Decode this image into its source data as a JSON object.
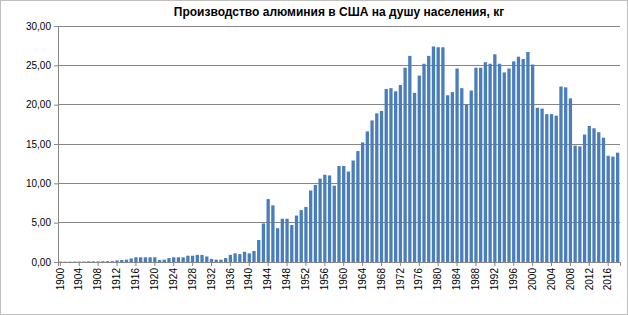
{
  "chart_data": {
    "type": "bar",
    "title": "Производство алюминия в США на душу населения, кг",
    "categories": [
      "1900",
      null,
      null,
      null,
      "1904",
      null,
      null,
      null,
      "1908",
      null,
      null,
      null,
      "1912",
      null,
      null,
      null,
      "1916",
      null,
      null,
      null,
      "1920",
      null,
      null,
      null,
      "1924",
      null,
      null,
      null,
      "1928",
      null,
      null,
      null,
      "1932",
      null,
      null,
      null,
      "1936",
      null,
      null,
      null,
      "1940",
      null,
      null,
      null,
      "1944",
      null,
      null,
      null,
      "1948",
      null,
      null,
      null,
      "1952",
      null,
      null,
      null,
      "1956",
      null,
      null,
      null,
      "1960",
      null,
      null,
      null,
      "1964",
      null,
      null,
      null,
      "1968",
      null,
      null,
      null,
      "1972",
      null,
      null,
      null,
      "1976",
      null,
      null,
      null,
      "1980",
      null,
      null,
      null,
      "1984",
      null,
      null,
      null,
      "1988",
      null,
      null,
      null,
      "1992",
      null,
      null,
      null,
      "1996",
      null,
      null,
      null,
      "2000",
      null,
      null,
      null,
      "2004",
      null,
      null,
      null,
      "2008",
      null,
      null,
      null,
      "2012",
      null,
      null,
      null,
      "2016",
      null,
      null
    ],
    "values": [
      0.05,
      0.04,
      0.04,
      0.05,
      0.05,
      0.06,
      0.08,
      0.08,
      0.07,
      0.1,
      0.1,
      0.1,
      0.2,
      0.25,
      0.3,
      0.45,
      0.6,
      0.6,
      0.6,
      0.6,
      0.6,
      0.25,
      0.3,
      0.5,
      0.6,
      0.6,
      0.6,
      0.8,
      0.8,
      0.9,
      0.9,
      0.7,
      0.4,
      0.3,
      0.3,
      0.5,
      0.9,
      1.1,
      1.0,
      1.3,
      1.1,
      1.4,
      2.8,
      4.9,
      8.0,
      7.2,
      4.3,
      5.5,
      5.5,
      4.7,
      5.9,
      6.6,
      7.0,
      9.1,
      9.8,
      10.6,
      11.1,
      11.0,
      9.7,
      12.2,
      12.2,
      11.5,
      12.9,
      14.1,
      15.2,
      16.6,
      18.0,
      18.9,
      19.2,
      22.0,
      22.1,
      21.7,
      22.5,
      24.7,
      26.2,
      21.5,
      23.7,
      25.2,
      26.2,
      27.4,
      27.3,
      27.3,
      21.2,
      21.6,
      24.6,
      22.1,
      20.0,
      21.8,
      24.7,
      24.7,
      25.4,
      25.2,
      26.4,
      25.2,
      24.1,
      24.6,
      25.5,
      26.1,
      25.8,
      26.7,
      25.1,
      19.6,
      19.5,
      18.8,
      18.8,
      18.6,
      22.3,
      22.2,
      20.8,
      14.8,
      14.7,
      16.2,
      17.3,
      17.0,
      16.5,
      15.8,
      13.5,
      13.4,
      13.9
    ],
    "color": "#4a7ebb",
    "ylim": [
      0,
      30
    ],
    "yticks": [
      {
        "value": 0,
        "label": "0,00"
      },
      {
        "value": 5,
        "label": "5,00"
      },
      {
        "value": 10,
        "label": "10,00"
      },
      {
        "value": 15,
        "label": "15,00"
      },
      {
        "value": 20,
        "label": "20,00"
      },
      {
        "value": 25,
        "label": "25,00"
      },
      {
        "value": 30,
        "label": "30,00"
      }
    ],
    "grid": true
  }
}
